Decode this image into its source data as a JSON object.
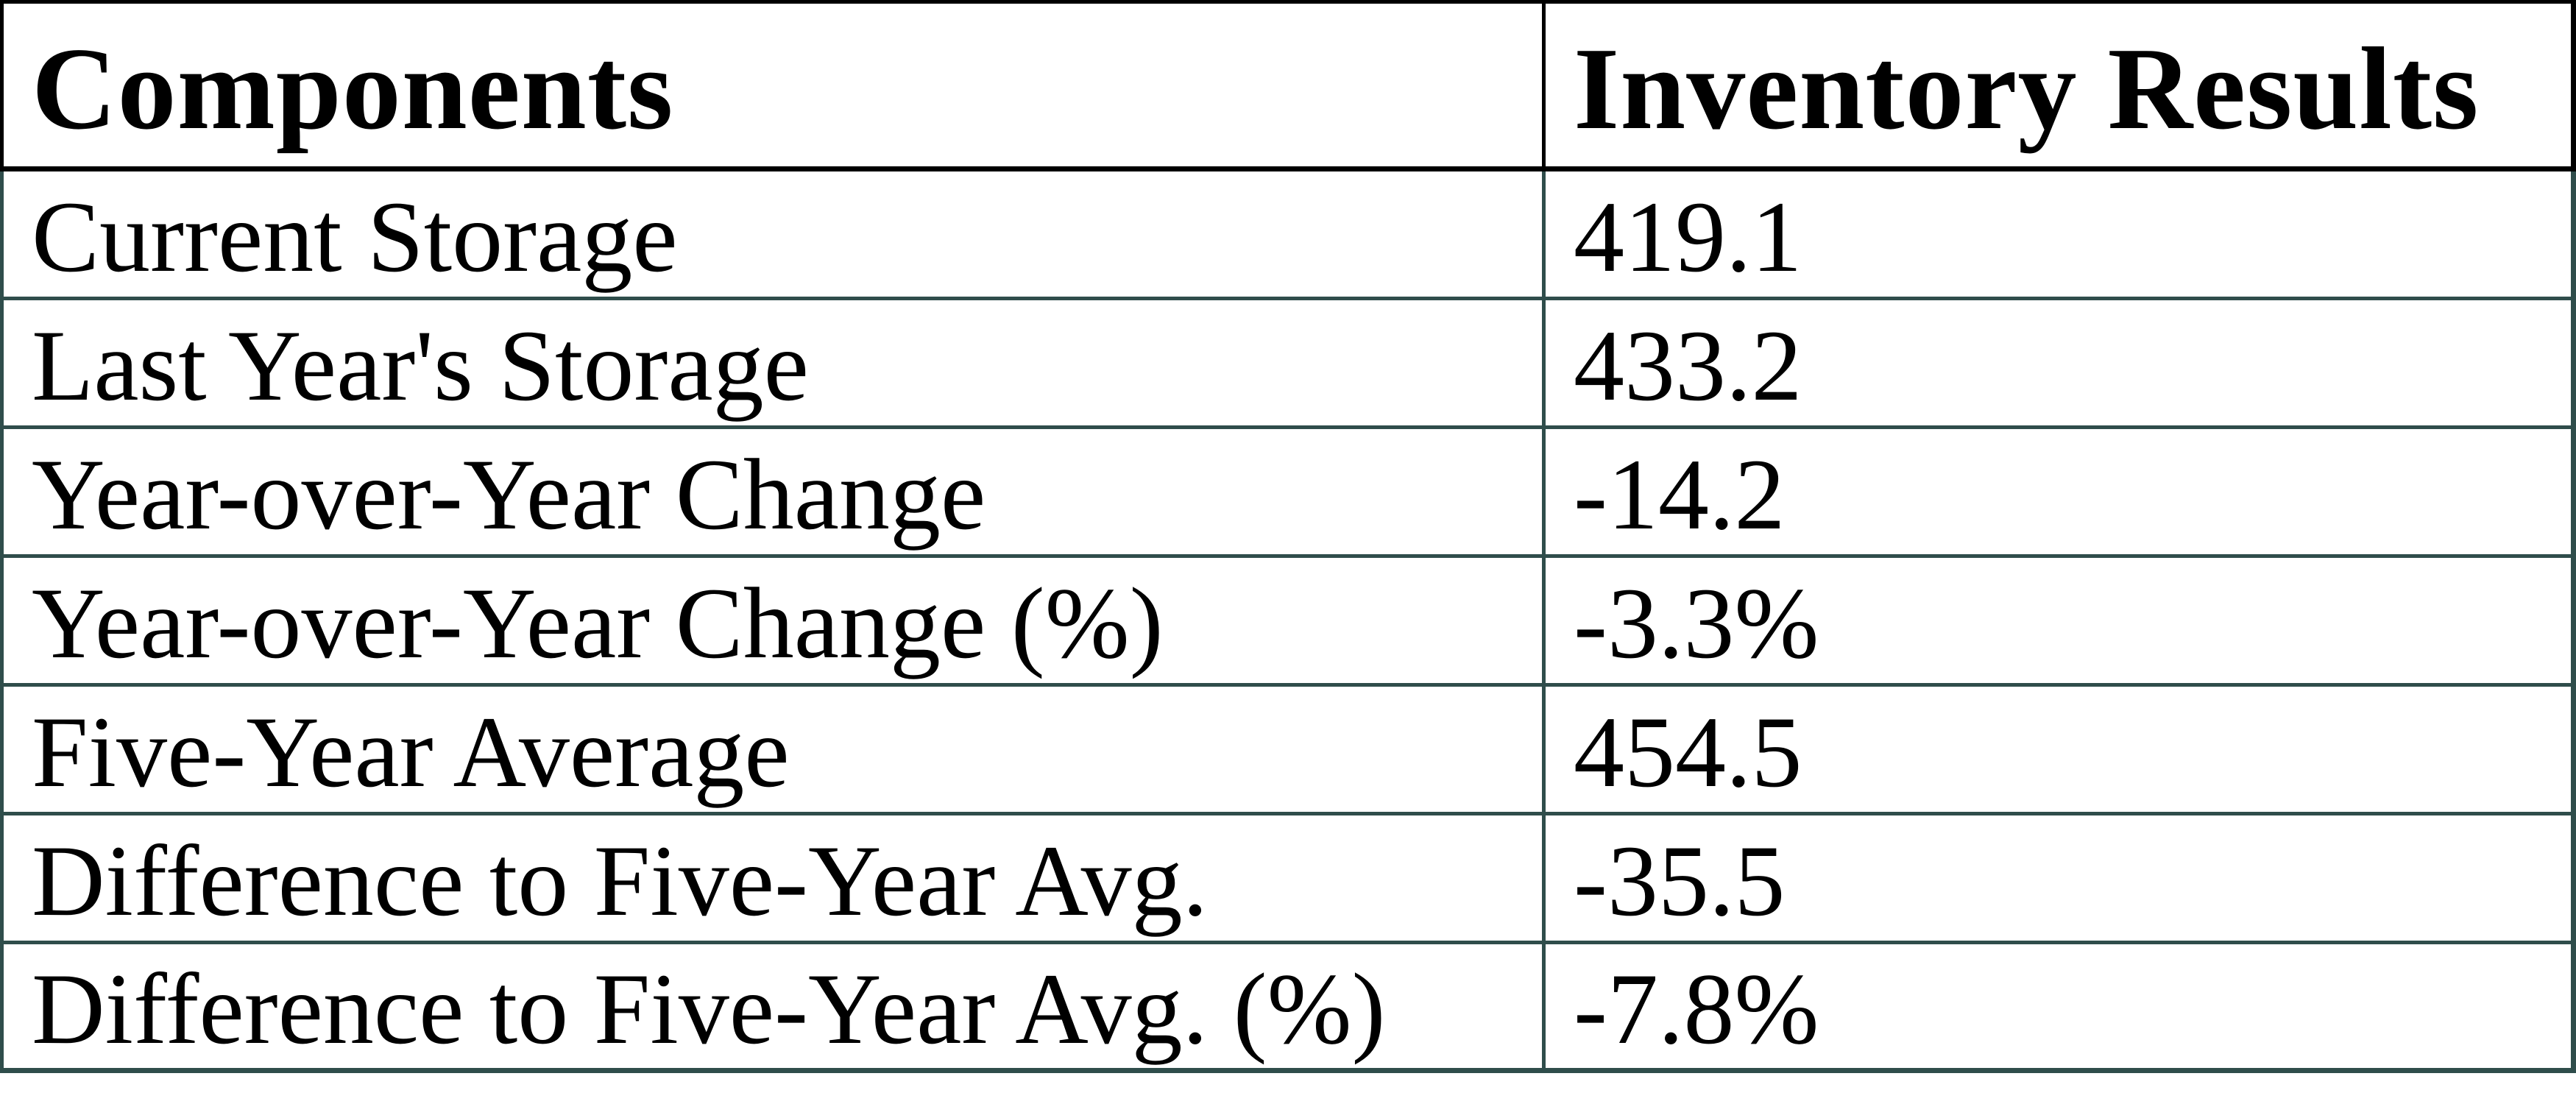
{
  "colors": {
    "header_border": "#000000",
    "body_border": "#2F4D4B",
    "text": "#000000",
    "background": "#FFFFFF"
  },
  "table": {
    "headers": [
      "Components",
      "Inventory Results"
    ],
    "rows": [
      {
        "label": "Current Storage",
        "value": "419.1"
      },
      {
        "label": "Last Year's Storage",
        "value": "433.2"
      },
      {
        "label": "Year-over-Year Change",
        "value": "-14.2"
      },
      {
        "label": "Year-over-Year Change (%)",
        "value": "-3.3%"
      },
      {
        "label": "Five-Year Average",
        "value": "454.5"
      },
      {
        "label": "Difference to Five-Year Avg.",
        "value": "-35.5"
      },
      {
        "label": "Difference to Five-Year Avg. (%)",
        "value": "-7.8%"
      }
    ]
  },
  "chart_data": {
    "type": "table",
    "title": "",
    "columns": [
      "Components",
      "Inventory Results"
    ],
    "rows": [
      [
        "Current Storage",
        "419.1"
      ],
      [
        "Last Year's Storage",
        "433.2"
      ],
      [
        "Year-over-Year Change",
        "-14.2"
      ],
      [
        "Year-over-Year Change (%)",
        "-3.3%"
      ],
      [
        "Five-Year Average",
        "454.5"
      ],
      [
        "Difference to Five-Year Avg.",
        "-35.5"
      ],
      [
        "Difference to Five-Year Avg. (%)",
        "-7.8%"
      ]
    ]
  }
}
